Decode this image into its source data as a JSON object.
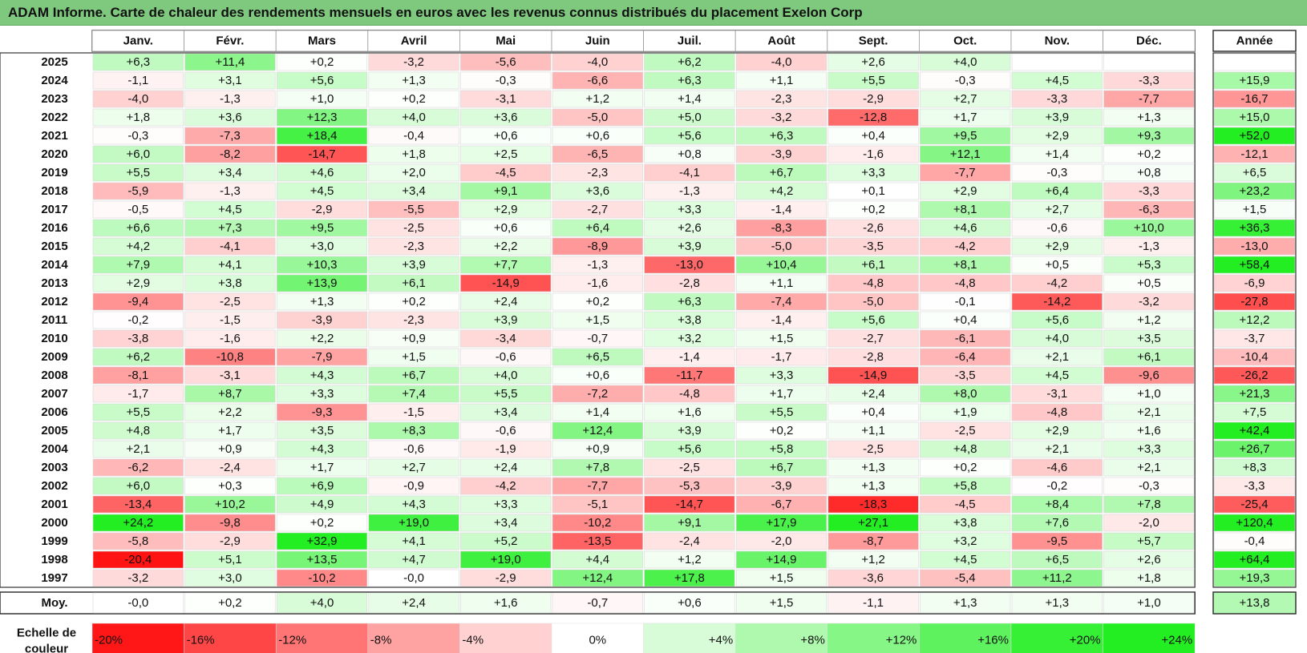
{
  "title": "ADAM Informe. Carte de chaleur des rendements mensuels en euros avec les revenus connus distribués du placement Exelon Corp",
  "chart_data": {
    "type": "heatmap",
    "columns": [
      "Janv.",
      "Févr.",
      "Mars",
      "Avril",
      "Mai",
      "Juin",
      "Juil.",
      "Août",
      "Sept.",
      "Oct.",
      "Nov.",
      "Déc."
    ],
    "year_column_label": "Année",
    "average_row_label": "Moy.",
    "rows": [
      {
        "year": "2025",
        "values": [
          "+6,3",
          "+11,4",
          "+0,2",
          "-3,2",
          "-5,6",
          "-4,0",
          "+6,2",
          "-4,0",
          "+2,6",
          "+4,0",
          "",
          ""
        ],
        "annual": ""
      },
      {
        "year": "2024",
        "values": [
          "-1,1",
          "+3,1",
          "+5,6",
          "+1,3",
          "-0,3",
          "-6,6",
          "+6,3",
          "+1,1",
          "+5,5",
          "-0,3",
          "+4,5",
          "-3,3"
        ],
        "annual": "+15,9"
      },
      {
        "year": "2023",
        "values": [
          "-4,0",
          "-1,3",
          "+1,0",
          "+0,2",
          "-3,1",
          "+1,2",
          "+1,4",
          "-2,3",
          "-2,9",
          "+2,7",
          "-3,3",
          "-7,7"
        ],
        "annual": "-16,7"
      },
      {
        "year": "2022",
        "values": [
          "+1,8",
          "+3,6",
          "+12,3",
          "+4,0",
          "+3,6",
          "-5,0",
          "+5,0",
          "-3,2",
          "-12,8",
          "+1,7",
          "+3,9",
          "+1,3"
        ],
        "annual": "+15,0"
      },
      {
        "year": "2021",
        "values": [
          "-0,3",
          "-7,3",
          "+18,4",
          "-0,4",
          "+0,6",
          "+0,6",
          "+5,6",
          "+6,3",
          "+0,4",
          "+9,5",
          "+2,9",
          "+9,3"
        ],
        "annual": "+52,0"
      },
      {
        "year": "2020",
        "values": [
          "+6,0",
          "-8,2",
          "-14,7",
          "+1,8",
          "+2,5",
          "-6,5",
          "+0,8",
          "-3,9",
          "-1,6",
          "+12,1",
          "+1,4",
          "+0,2"
        ],
        "annual": "-12,1"
      },
      {
        "year": "2019",
        "values": [
          "+5,5",
          "+3,4",
          "+4,6",
          "+2,0",
          "-4,5",
          "-2,3",
          "-4,1",
          "+6,7",
          "+3,3",
          "-7,7",
          "-0,3",
          "+0,8"
        ],
        "annual": "+6,5"
      },
      {
        "year": "2018",
        "values": [
          "-5,9",
          "-1,3",
          "+4,5",
          "+3,4",
          "+9,1",
          "+3,6",
          "-1,3",
          "+4,2",
          "+0,1",
          "+2,9",
          "+6,4",
          "-3,3"
        ],
        "annual": "+23,2"
      },
      {
        "year": "2017",
        "values": [
          "-0,5",
          "+4,5",
          "-2,9",
          "-5,5",
          "+2,9",
          "-2,7",
          "+3,3",
          "-1,4",
          "+0,2",
          "+8,1",
          "+2,7",
          "-6,3"
        ],
        "annual": "+1,5"
      },
      {
        "year": "2016",
        "values": [
          "+6,6",
          "+7,3",
          "+9,5",
          "-2,5",
          "+0,6",
          "+6,4",
          "+2,6",
          "-8,3",
          "-2,6",
          "+4,6",
          "-0,6",
          "+10,0"
        ],
        "annual": "+36,3"
      },
      {
        "year": "2015",
        "values": [
          "+4,2",
          "-4,1",
          "+3,0",
          "-2,3",
          "+2,2",
          "-8,9",
          "+3,9",
          "-5,0",
          "-3,5",
          "-4,2",
          "+2,9",
          "-1,3"
        ],
        "annual": "-13,0"
      },
      {
        "year": "2014",
        "values": [
          "+7,9",
          "+4,1",
          "+10,3",
          "+3,9",
          "+7,7",
          "-1,3",
          "-13,0",
          "+10,4",
          "+6,1",
          "+8,1",
          "+0,5",
          "+5,3"
        ],
        "annual": "+58,4"
      },
      {
        "year": "2013",
        "values": [
          "+2,9",
          "+3,8",
          "+13,9",
          "+6,1",
          "-14,9",
          "-1,6",
          "-2,8",
          "+1,1",
          "-4,8",
          "-4,8",
          "-4,2",
          "+0,5"
        ],
        "annual": "-6,9"
      },
      {
        "year": "2012",
        "values": [
          "-9,4",
          "-2,5",
          "+1,3",
          "+0,2",
          "+2,4",
          "+0,2",
          "+6,3",
          "-7,4",
          "-5,0",
          "-0,1",
          "-14,2",
          "-3,2"
        ],
        "annual": "-27,8"
      },
      {
        "year": "2011",
        "values": [
          "-0,2",
          "-1,5",
          "-3,9",
          "-2,3",
          "+3,9",
          "+1,5",
          "+3,8",
          "-1,4",
          "+5,6",
          "+0,4",
          "+5,6",
          "+1,2"
        ],
        "annual": "+12,2"
      },
      {
        "year": "2010",
        "values": [
          "-3,8",
          "-1,6",
          "+2,2",
          "+0,9",
          "-3,4",
          "-0,7",
          "+3,2",
          "+1,5",
          "-2,7",
          "-6,1",
          "+4,0",
          "+3,5"
        ],
        "annual": "-3,7"
      },
      {
        "year": "2009",
        "values": [
          "+6,2",
          "-10,8",
          "-7,9",
          "+1,5",
          "-0,6",
          "+6,5",
          "-1,4",
          "-1,7",
          "-2,8",
          "-6,4",
          "+2,1",
          "+6,1"
        ],
        "annual": "-10,4"
      },
      {
        "year": "2008",
        "values": [
          "-8,1",
          "-3,1",
          "+4,3",
          "+6,7",
          "+4,0",
          "+0,6",
          "-11,7",
          "+3,3",
          "-14,9",
          "-3,5",
          "+4,5",
          "-9,6"
        ],
        "annual": "-26,2"
      },
      {
        "year": "2007",
        "values": [
          "-1,7",
          "+8,7",
          "+3,3",
          "+7,4",
          "+5,5",
          "-7,2",
          "-4,8",
          "+1,7",
          "+2,4",
          "+8,0",
          "-3,1",
          "+1,0"
        ],
        "annual": "+21,3"
      },
      {
        "year": "2006",
        "values": [
          "+5,5",
          "+2,2",
          "-9,3",
          "-1,5",
          "+3,4",
          "+1,4",
          "+1,6",
          "+5,5",
          "+0,4",
          "+1,9",
          "-4,8",
          "+2,1"
        ],
        "annual": "+7,5"
      },
      {
        "year": "2005",
        "values": [
          "+4,8",
          "+1,7",
          "+3,5",
          "+8,3",
          "-0,6",
          "+12,4",
          "+3,9",
          "+0,2",
          "+1,1",
          "-2,5",
          "+2,9",
          "+1,6"
        ],
        "annual": "+42,4"
      },
      {
        "year": "2004",
        "values": [
          "+2,1",
          "+0,9",
          "+4,3",
          "-0,6",
          "-1,9",
          "+0,9",
          "+5,6",
          "+5,8",
          "-2,5",
          "+4,8",
          "+2,1",
          "+3,3"
        ],
        "annual": "+26,7"
      },
      {
        "year": "2003",
        "values": [
          "-6,2",
          "-2,4",
          "+1,7",
          "+2,7",
          "+2,4",
          "+7,8",
          "-2,5",
          "+6,7",
          "+1,3",
          "+0,2",
          "-4,6",
          "+2,1"
        ],
        "annual": "+8,3"
      },
      {
        "year": "2002",
        "values": [
          "+6,0",
          "+0,3",
          "+6,9",
          "-0,9",
          "-4,2",
          "-7,7",
          "-5,3",
          "-3,9",
          "+1,3",
          "+5,8",
          "-0,2",
          "-0,3"
        ],
        "annual": "-3,3"
      },
      {
        "year": "2001",
        "values": [
          "-13,4",
          "+10,2",
          "+4,9",
          "+4,3",
          "+3,3",
          "-5,1",
          "-14,7",
          "-6,7",
          "-18,3",
          "-4,5",
          "+8,4",
          "+7,8"
        ],
        "annual": "-25,4"
      },
      {
        "year": "2000",
        "values": [
          "+24,2",
          "-9,8",
          "+0,2",
          "+19,0",
          "+3,4",
          "-10,2",
          "+9,1",
          "+17,9",
          "+27,1",
          "+3,8",
          "+7,6",
          "-2,0"
        ],
        "annual": "+120,4"
      },
      {
        "year": "1999",
        "values": [
          "-5,8",
          "-2,9",
          "+32,9",
          "+4,1",
          "+5,2",
          "-13,5",
          "-2,4",
          "-2,0",
          "-8,7",
          "+3,2",
          "-9,5",
          "+5,7"
        ],
        "annual": "-0,4"
      },
      {
        "year": "1998",
        "values": [
          "-20,4",
          "+5,1",
          "+13,5",
          "+4,7",
          "+19,0",
          "+4,4",
          "+1,2",
          "+14,9",
          "+1,2",
          "+4,5",
          "+6,5",
          "+2,6"
        ],
        "annual": "+64,4"
      },
      {
        "year": "1997",
        "values": [
          "-3,2",
          "+3,0",
          "-10,2",
          "-0,0",
          "-2,9",
          "+12,4",
          "+17,8",
          "+1,5",
          "-3,6",
          "-5,4",
          "+11,2",
          "+1,8"
        ],
        "annual": "+19,3"
      }
    ],
    "average_values": [
      "-0,0",
      "+0,2",
      "+4,0",
      "+2,4",
      "+1,6",
      "-0,7",
      "+0,6",
      "+1,5",
      "-1,1",
      "+1,3",
      "+1,3",
      "+1,0"
    ],
    "average_annual": "+13,8",
    "scale_label_line1": "Echelle de",
    "scale_label_line2": "couleur",
    "scale_labels": [
      "-20%",
      "-16%",
      "-12%",
      "-8%",
      "-4%",
      "0%",
      "+4%",
      "+8%",
      "+12%",
      "+16%",
      "+20%",
      "+24%"
    ],
    "scale_values": [
      -20,
      -16,
      -12,
      -8,
      -4,
      0,
      4,
      8,
      12,
      16,
      20,
      24
    ],
    "colors": {
      "negative_max": "#ff0000",
      "neutral": "#ffffff",
      "positive_max": "#22ee22",
      "title_bar": "#7fc97f"
    }
  }
}
